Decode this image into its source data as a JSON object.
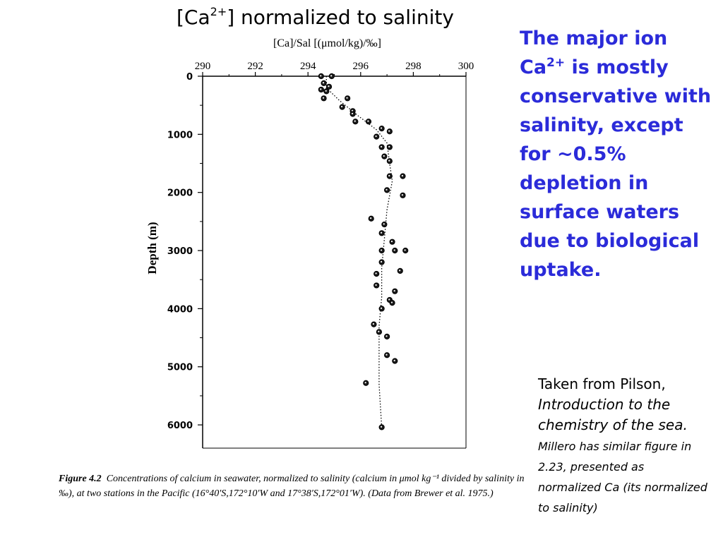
{
  "slide": {
    "title_prefix": "[Ca",
    "title_sup": "2+",
    "title_suffix": "] normalized to salinity",
    "side_text_a": "The major ion Ca",
    "side_text_sup": "2+",
    "side_text_b": " is mostly conservative with salinity, except for ~0.5% depletion in surface waters due to biological uptake.",
    "credit_a": "Taken from Pilson, ",
    "credit_book": "Introduction to the chemistry of the sea.",
    "credit_note": "Millero has similar figure in 2.23, presented as normalized Ca (its normalized to salinity)"
  },
  "figure": {
    "caption_label": "Figure 4.2",
    "caption_text": "Concentrations of calcium in seawater, normalized to salinity (calcium in μmol kg⁻¹ divided by salinity in ‰), at two stations in the Pacific (16°40′S,172°10′W and 17°38′S,172°01′W). (Data from Brewer et al. 1975.)"
  },
  "chart_data": {
    "type": "scatter",
    "title": "",
    "xlabel": "[Ca]/Sal  [(μmol/kg)/‰]",
    "ylabel": "Depth (m)",
    "xlim": [
      290,
      300
    ],
    "ylim": [
      6400,
      0
    ],
    "x_ticks": [
      "290",
      "292",
      "294",
      "296",
      "298",
      "300"
    ],
    "y_ticks": [
      "0",
      "1000",
      "2000",
      "3000",
      "4000",
      "5000",
      "6000"
    ],
    "grid": false,
    "legend": "none",
    "series": [
      {
        "points": [
          [
            294.5,
            0
          ],
          [
            294.9,
            0
          ],
          [
            294.6,
            120
          ],
          [
            294.8,
            180
          ],
          [
            294.5,
            230
          ],
          [
            294.7,
            260
          ],
          [
            294.6,
            380
          ],
          [
            295.5,
            380
          ],
          [
            295.3,
            530
          ],
          [
            295.7,
            600
          ],
          [
            295.7,
            650
          ],
          [
            295.8,
            780
          ],
          [
            296.3,
            780
          ],
          [
            296.8,
            900
          ],
          [
            297.1,
            950
          ],
          [
            296.6,
            1040
          ],
          [
            296.8,
            1220
          ],
          [
            297.1,
            1220
          ],
          [
            296.9,
            1380
          ],
          [
            297.1,
            1460
          ],
          [
            297.1,
            1720
          ],
          [
            297.6,
            1720
          ],
          [
            297.0,
            1960
          ],
          [
            297.6,
            2050
          ],
          [
            296.4,
            2450
          ],
          [
            296.9,
            2550
          ],
          [
            296.8,
            2700
          ],
          [
            297.2,
            2850
          ],
          [
            297.3,
            3000
          ],
          [
            297.7,
            3000
          ],
          [
            296.8,
            3000
          ],
          [
            296.8,
            3200
          ],
          [
            296.6,
            3400
          ],
          [
            296.6,
            3600
          ],
          [
            297.5,
            3350
          ],
          [
            297.3,
            3700
          ],
          [
            297.1,
            3850
          ],
          [
            297.2,
            3900
          ],
          [
            296.8,
            4000
          ],
          [
            296.5,
            4270
          ],
          [
            296.7,
            4400
          ],
          [
            297.0,
            4480
          ],
          [
            297.0,
            4800
          ],
          [
            297.3,
            4900
          ],
          [
            296.2,
            5280
          ],
          [
            296.8,
            6040
          ]
        ]
      }
    ],
    "trend": [
      [
        294.7,
        0
      ],
      [
        294.7,
        200
      ],
      [
        295.2,
        420
      ],
      [
        295.9,
        680
      ],
      [
        296.6,
        920
      ],
      [
        297.0,
        1150
      ],
      [
        297.1,
        1500
      ],
      [
        297.2,
        1800
      ],
      [
        297.0,
        2300
      ],
      [
        296.9,
        2800
      ],
      [
        296.8,
        3300
      ],
      [
        296.8,
        3800
      ],
      [
        296.7,
        4300
      ],
      [
        296.7,
        4800
      ],
      [
        296.7,
        5300
      ],
      [
        296.8,
        6040
      ]
    ]
  }
}
